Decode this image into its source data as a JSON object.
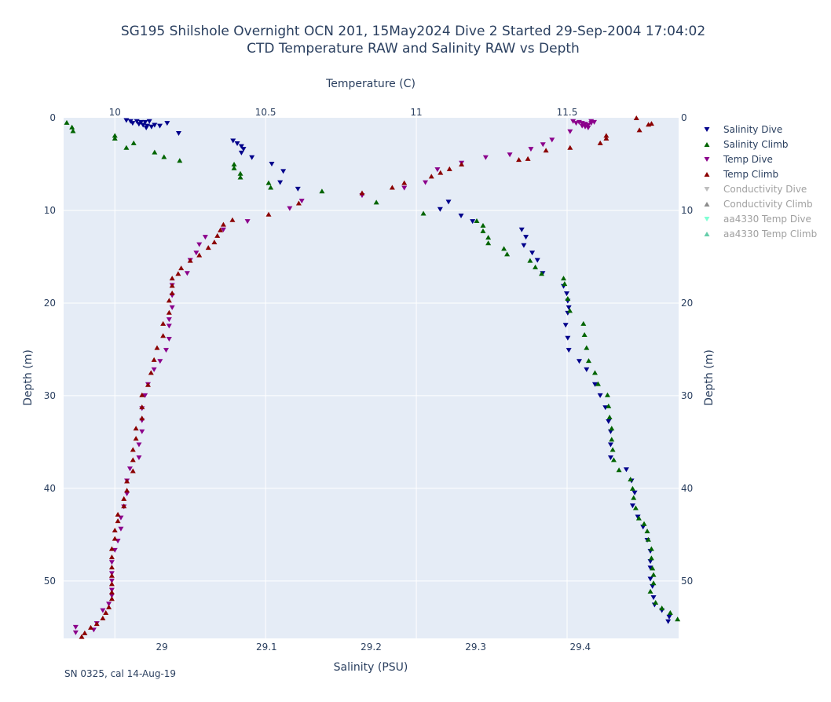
{
  "title_line1": "SG195 Shilshole Overnight OCN 201, 15May2024 Dive 2 Started 29-Sep-2004 17:04:02",
  "title_line2": "CTD Temperature RAW and Salinity RAW vs Depth",
  "footnote": "SN 0325, cal 14-Aug-19",
  "colors": {
    "plot_bg": "#e5ecf6",
    "grid": "#ffffff",
    "salinity_dive": "#00008b",
    "salinity_climb": "#006400",
    "temp_dive": "#8b008b",
    "temp_climb": "#8b0000",
    "conductivity_dive": "#bebebe",
    "conductivity_climb": "#8c8c8c",
    "aa_temp_dive": "#7fffd4",
    "aa_temp_climb": "#66cdaa"
  },
  "chart_data": {
    "type": "scatter",
    "axes": {
      "top_x": {
        "label": "Temperature (C)",
        "range": [
          9.83,
          11.87
        ],
        "ticks": [
          10,
          10.5,
          11,
          11.5
        ]
      },
      "bottom_x": {
        "label": "Salinity (PSU)",
        "range": [
          28.906,
          29.494
        ],
        "ticks": [
          29,
          29.1,
          29.2,
          29.3,
          29.4
        ]
      },
      "left_y": {
        "label": "Depth (m)",
        "range": [
          0,
          56.2
        ],
        "reversed": true,
        "ticks": [
          0,
          10,
          20,
          30,
          40,
          50
        ]
      },
      "right_y": {
        "label": "Depth (m)",
        "range": [
          0,
          56.2
        ],
        "reversed": true,
        "ticks": [
          0,
          10,
          20,
          30,
          40,
          50
        ]
      }
    },
    "grid": true,
    "legend_position": "right",
    "legend": [
      {
        "name": "Salinity Dive",
        "key": "salinity_dive",
        "marker": "down",
        "visible": true
      },
      {
        "name": "Salinity Climb",
        "key": "salinity_climb",
        "marker": "up",
        "visible": true
      },
      {
        "name": "Temp Dive",
        "key": "temp_dive",
        "marker": "down",
        "visible": true
      },
      {
        "name": "Temp Climb",
        "key": "temp_climb",
        "marker": "up",
        "visible": true
      },
      {
        "name": "Conductivity Dive",
        "key": "conductivity_dive",
        "marker": "down",
        "visible": false
      },
      {
        "name": "Conductivity Climb",
        "key": "conductivity_climb",
        "marker": "up",
        "visible": false
      },
      {
        "name": "aa4330 Temp Dive",
        "key": "aa_temp_dive",
        "marker": "down",
        "visible": false
      },
      {
        "name": "aa4330 Temp Climb",
        "key": "aa_temp_climb",
        "marker": "up",
        "visible": false
      }
    ],
    "series": [
      {
        "key": "salinity_dive",
        "axis": "salinity",
        "points": [
          [
            28.966,
            0.3
          ],
          [
            28.97,
            0.4
          ],
          [
            28.976,
            0.4
          ],
          [
            28.98,
            0.5
          ],
          [
            28.984,
            0.5
          ],
          [
            28.988,
            0.4
          ],
          [
            28.972,
            0.6
          ],
          [
            28.978,
            0.7
          ],
          [
            28.982,
            0.8
          ],
          [
            28.986,
            0.9
          ],
          [
            28.99,
            1.0
          ],
          [
            28.985,
            1.1
          ],
          [
            28.993,
            0.8
          ],
          [
            28.998,
            0.9
          ],
          [
            29.005,
            0.6
          ],
          [
            29.016,
            1.7
          ],
          [
            29.068,
            2.5
          ],
          [
            29.072,
            2.8
          ],
          [
            29.076,
            3.1
          ],
          [
            29.078,
            3.4
          ],
          [
            29.076,
            3.8
          ],
          [
            29.086,
            4.3
          ],
          [
            29.105,
            5.0
          ],
          [
            29.116,
            5.8
          ],
          [
            29.113,
            7.0
          ],
          [
            29.13,
            7.7
          ],
          [
            29.266,
            9.9
          ],
          [
            29.274,
            9.1
          ],
          [
            29.286,
            10.6
          ],
          [
            29.297,
            11.2
          ],
          [
            29.344,
            12.1
          ],
          [
            29.348,
            12.9
          ],
          [
            29.346,
            13.8
          ],
          [
            29.354,
            14.6
          ],
          [
            29.359,
            15.4
          ],
          [
            29.364,
            16.8
          ],
          [
            29.384,
            18.2
          ],
          [
            29.387,
            19.0
          ],
          [
            29.388,
            19.8
          ],
          [
            29.389,
            20.5
          ],
          [
            29.388,
            21.1
          ],
          [
            29.386,
            22.4
          ],
          [
            29.388,
            23.8
          ],
          [
            29.389,
            25.1
          ],
          [
            29.399,
            26.3
          ],
          [
            29.406,
            27.2
          ],
          [
            29.414,
            28.8
          ],
          [
            29.419,
            30.0
          ],
          [
            29.424,
            31.3
          ],
          [
            29.427,
            32.8
          ],
          [
            29.429,
            33.9
          ],
          [
            29.429,
            35.3
          ],
          [
            29.429,
            36.7
          ],
          [
            29.444,
            38.0
          ],
          [
            29.449,
            39.2
          ],
          [
            29.452,
            40.5
          ],
          [
            29.45,
            41.9
          ],
          [
            29.455,
            43.1
          ],
          [
            29.46,
            44.2
          ],
          [
            29.464,
            45.6
          ],
          [
            29.467,
            46.8
          ],
          [
            29.467,
            47.9
          ],
          [
            29.467,
            48.6
          ],
          [
            29.467,
            49.8
          ],
          [
            29.469,
            50.6
          ],
          [
            29.47,
            51.8
          ],
          [
            29.471,
            52.6
          ],
          [
            29.478,
            53.2
          ],
          [
            29.485,
            53.9
          ],
          [
            29.484,
            54.4
          ]
        ]
      },
      {
        "key": "salinity_climb",
        "axis": "salinity",
        "points": [
          [
            28.909,
            0.5
          ],
          [
            28.914,
            1.0
          ],
          [
            28.915,
            1.4
          ],
          [
            28.955,
            1.9
          ],
          [
            28.955,
            2.2
          ],
          [
            28.966,
            3.2
          ],
          [
            28.973,
            2.7
          ],
          [
            28.993,
            3.7
          ],
          [
            29.002,
            4.2
          ],
          [
            29.017,
            4.6
          ],
          [
            29.069,
            5.0
          ],
          [
            29.069,
            5.4
          ],
          [
            29.075,
            6.0
          ],
          [
            29.075,
            6.4
          ],
          [
            29.102,
            7.0
          ],
          [
            29.104,
            7.5
          ],
          [
            29.153,
            7.9
          ],
          [
            29.205,
            9.1
          ],
          [
            29.25,
            10.3
          ],
          [
            29.301,
            11.1
          ],
          [
            29.307,
            11.6
          ],
          [
            29.307,
            12.2
          ],
          [
            29.312,
            12.9
          ],
          [
            29.312,
            13.5
          ],
          [
            29.327,
            14.1
          ],
          [
            29.33,
            14.7
          ],
          [
            29.352,
            15.4
          ],
          [
            29.357,
            16.1
          ],
          [
            29.363,
            16.8
          ],
          [
            29.384,
            17.3
          ],
          [
            29.385,
            17.9
          ],
          [
            29.388,
            19.5
          ],
          [
            29.39,
            20.8
          ],
          [
            29.403,
            22.2
          ],
          [
            29.404,
            23.4
          ],
          [
            29.406,
            24.8
          ],
          [
            29.408,
            26.2
          ],
          [
            29.414,
            27.5
          ],
          [
            29.417,
            28.7
          ],
          [
            29.426,
            29.9
          ],
          [
            29.427,
            31.1
          ],
          [
            29.428,
            32.3
          ],
          [
            29.43,
            33.5
          ],
          [
            29.43,
            34.7
          ],
          [
            29.431,
            35.8
          ],
          [
            29.432,
            36.9
          ],
          [
            29.437,
            38.0
          ],
          [
            29.448,
            39.0
          ],
          [
            29.45,
            40.0
          ],
          [
            29.451,
            41.0
          ],
          [
            29.453,
            42.1
          ],
          [
            29.456,
            43.2
          ],
          [
            29.461,
            43.8
          ],
          [
            29.464,
            44.6
          ],
          [
            29.465,
            45.5
          ],
          [
            29.468,
            46.5
          ],
          [
            29.468,
            47.5
          ],
          [
            29.469,
            48.6
          ],
          [
            29.47,
            49.3
          ],
          [
            29.47,
            50.2
          ],
          [
            29.467,
            51.1
          ],
          [
            29.472,
            52.3
          ],
          [
            29.478,
            52.9
          ],
          [
            29.486,
            53.4
          ],
          [
            29.493,
            54.1
          ]
        ]
      },
      {
        "key": "temp_dive",
        "axis": "temperature",
        "points": [
          [
            11.52,
            0.4
          ],
          [
            11.54,
            0.5
          ],
          [
            11.55,
            0.6
          ],
          [
            11.56,
            0.7
          ],
          [
            11.57,
            0.8
          ],
          [
            11.58,
            0.6
          ],
          [
            11.56,
            1.0
          ],
          [
            11.57,
            1.1
          ],
          [
            11.55,
            0.9
          ],
          [
            11.59,
            0.5
          ],
          [
            11.58,
            0.4
          ],
          [
            11.53,
            0.6
          ],
          [
            11.51,
            1.5
          ],
          [
            11.45,
            2.4
          ],
          [
            11.42,
            2.9
          ],
          [
            11.38,
            3.4
          ],
          [
            11.31,
            4.0
          ],
          [
            11.23,
            4.3
          ],
          [
            11.15,
            4.9
          ],
          [
            11.07,
            5.6
          ],
          [
            11.03,
            7.0
          ],
          [
            10.96,
            7.6
          ],
          [
            10.82,
            8.4
          ],
          [
            10.62,
            9.0
          ],
          [
            10.58,
            9.8
          ],
          [
            10.44,
            11.2
          ],
          [
            10.36,
            12.1
          ],
          [
            10.3,
            12.9
          ],
          [
            10.28,
            13.7
          ],
          [
            10.27,
            14.6
          ],
          [
            10.25,
            15.4
          ],
          [
            10.24,
            16.8
          ],
          [
            10.19,
            18.1
          ],
          [
            10.19,
            19.2
          ],
          [
            10.19,
            20.5
          ],
          [
            10.18,
            21.8
          ],
          [
            10.18,
            22.5
          ],
          [
            10.18,
            23.9
          ],
          [
            10.17,
            25.1
          ],
          [
            10.15,
            26.3
          ],
          [
            10.13,
            27.2
          ],
          [
            10.11,
            28.8
          ],
          [
            10.1,
            30.0
          ],
          [
            10.09,
            31.4
          ],
          [
            10.09,
            32.7
          ],
          [
            10.09,
            33.9
          ],
          [
            10.08,
            35.3
          ],
          [
            10.08,
            36.7
          ],
          [
            10.05,
            37.9
          ],
          [
            10.04,
            39.2
          ],
          [
            10.04,
            40.6
          ],
          [
            10.03,
            42.0
          ],
          [
            10.02,
            43.2
          ],
          [
            10.02,
            44.4
          ],
          [
            10.01,
            45.7
          ],
          [
            10.0,
            46.7
          ],
          [
            9.99,
            48.0
          ],
          [
            9.99,
            49.2
          ],
          [
            9.99,
            50.0
          ],
          [
            9.99,
            51.0
          ],
          [
            9.99,
            51.6
          ],
          [
            9.98,
            52.5
          ],
          [
            9.96,
            53.2
          ],
          [
            9.94,
            54.6
          ],
          [
            9.93,
            55.3
          ],
          [
            9.87,
            55.0
          ],
          [
            9.87,
            55.6
          ]
        ]
      },
      {
        "key": "temp_climb",
        "axis": "temperature",
        "points": [
          [
            11.73,
            0.0
          ],
          [
            11.77,
            0.7
          ],
          [
            11.78,
            0.6
          ],
          [
            11.74,
            1.3
          ],
          [
            11.63,
            1.9
          ],
          [
            11.63,
            2.2
          ],
          [
            11.61,
            2.7
          ],
          [
            11.51,
            3.2
          ],
          [
            11.43,
            3.5
          ],
          [
            11.37,
            4.4
          ],
          [
            11.34,
            4.5
          ],
          [
            11.15,
            5.0
          ],
          [
            11.11,
            5.5
          ],
          [
            11.08,
            5.9
          ],
          [
            11.05,
            6.3
          ],
          [
            10.96,
            7.0
          ],
          [
            10.92,
            7.5
          ],
          [
            10.82,
            8.1
          ],
          [
            10.61,
            9.2
          ],
          [
            10.51,
            10.4
          ],
          [
            10.39,
            11.0
          ],
          [
            10.36,
            11.5
          ],
          [
            10.35,
            12.1
          ],
          [
            10.34,
            12.7
          ],
          [
            10.33,
            13.4
          ],
          [
            10.31,
            14.0
          ],
          [
            10.28,
            14.8
          ],
          [
            10.25,
            15.4
          ],
          [
            10.22,
            16.2
          ],
          [
            10.21,
            16.8
          ],
          [
            10.19,
            17.3
          ],
          [
            10.19,
            18.1
          ],
          [
            10.19,
            18.9
          ],
          [
            10.18,
            19.7
          ],
          [
            10.18,
            21.0
          ],
          [
            10.16,
            22.2
          ],
          [
            10.16,
            23.5
          ],
          [
            10.14,
            24.8
          ],
          [
            10.13,
            26.1
          ],
          [
            10.12,
            27.5
          ],
          [
            10.11,
            28.8
          ],
          [
            10.09,
            29.9
          ],
          [
            10.09,
            31.2
          ],
          [
            10.09,
            32.4
          ],
          [
            10.07,
            33.5
          ],
          [
            10.07,
            34.6
          ],
          [
            10.06,
            35.8
          ],
          [
            10.06,
            36.9
          ],
          [
            10.06,
            38.1
          ],
          [
            10.04,
            39.2
          ],
          [
            10.04,
            40.2
          ],
          [
            10.03,
            41.1
          ],
          [
            10.03,
            41.9
          ],
          [
            10.01,
            42.8
          ],
          [
            10.01,
            43.5
          ],
          [
            10.0,
            44.5
          ],
          [
            10.0,
            45.4
          ],
          [
            9.99,
            46.5
          ],
          [
            9.99,
            47.4
          ],
          [
            9.99,
            48.5
          ],
          [
            9.99,
            49.4
          ],
          [
            9.99,
            50.3
          ],
          [
            9.99,
            51.2
          ],
          [
            9.99,
            51.9
          ],
          [
            9.98,
            52.8
          ],
          [
            9.97,
            53.4
          ],
          [
            9.96,
            54.0
          ],
          [
            9.94,
            54.6
          ],
          [
            9.92,
            55.0
          ],
          [
            9.9,
            55.6
          ],
          [
            9.89,
            56.0
          ]
        ]
      }
    ]
  }
}
